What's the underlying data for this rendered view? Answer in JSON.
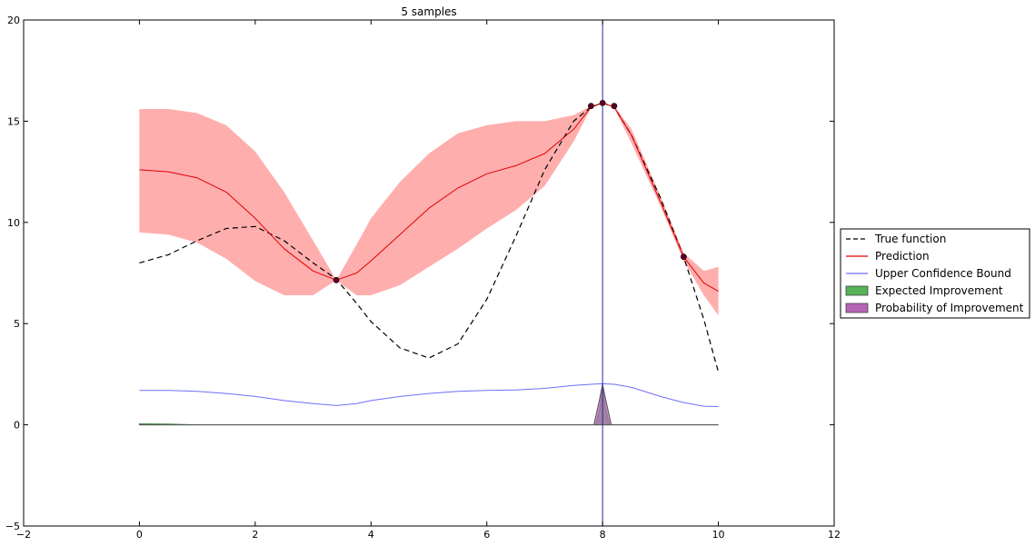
{
  "chart_data": {
    "type": "line",
    "title": "5 samples",
    "xlabel": "",
    "ylabel": "",
    "xlim": [
      -2,
      12
    ],
    "ylim": [
      -5,
      20
    ],
    "xticks": [
      -2,
      0,
      2,
      4,
      6,
      8,
      10,
      12
    ],
    "yticks": [
      -5,
      0,
      5,
      10,
      15,
      20
    ],
    "grid": false,
    "legend_position": "center-right outside",
    "x": [
      0,
      0.5,
      1,
      1.5,
      2,
      2.5,
      3,
      3.4,
      3.75,
      4,
      4.5,
      5,
      5.5,
      6,
      6.5,
      7,
      7.5,
      7.8,
      8,
      8.2,
      8.5,
      9,
      9.4,
      9.75,
      10
    ],
    "series": [
      {
        "name": "True function",
        "style": "dashed",
        "color": "#000000",
        "values": [
          8.0,
          8.4,
          9.1,
          9.7,
          9.8,
          9.1,
          8.0,
          7.2,
          6.0,
          5.1,
          3.8,
          3.3,
          4.0,
          6.2,
          9.3,
          12.6,
          15.0,
          15.7,
          15.9,
          15.7,
          14.3,
          11.2,
          8.3,
          5.2,
          2.6
        ]
      },
      {
        "name": "Prediction",
        "style": "solid",
        "color": "#e00000",
        "values": [
          12.6,
          12.5,
          12.2,
          11.5,
          10.2,
          8.7,
          7.6,
          7.15,
          7.5,
          8.1,
          9.4,
          10.7,
          11.7,
          12.4,
          12.8,
          13.4,
          14.6,
          15.7,
          15.9,
          15.7,
          14.3,
          11.0,
          8.3,
          7.0,
          6.6
        ]
      },
      {
        "name": "Upper Confidence Bound",
        "style": "solid",
        "color": "#6f6ff5",
        "values": [
          1.7,
          1.7,
          1.65,
          1.55,
          1.4,
          1.2,
          1.05,
          0.95,
          1.05,
          1.2,
          1.4,
          1.55,
          1.65,
          1.7,
          1.72,
          1.8,
          1.95,
          2.0,
          2.03,
          2.0,
          1.85,
          1.4,
          1.1,
          0.92,
          0.9
        ]
      }
    ],
    "confidence_band": {
      "color": "#ff9a9a",
      "upper": [
        15.6,
        15.6,
        15.4,
        14.8,
        13.5,
        11.5,
        9.1,
        7.15,
        8.9,
        10.2,
        12.0,
        13.4,
        14.4,
        14.8,
        15.0,
        15.0,
        15.3,
        15.75,
        15.9,
        15.75,
        14.6,
        11.3,
        8.5,
        7.6,
        7.8
      ],
      "lower": [
        9.5,
        9.4,
        9.0,
        8.2,
        7.1,
        6.4,
        6.4,
        7.15,
        6.4,
        6.4,
        6.9,
        7.8,
        8.7,
        9.7,
        10.6,
        11.8,
        14.0,
        15.65,
        15.9,
        15.65,
        13.9,
        10.8,
        8.1,
        6.4,
        5.4
      ]
    },
    "expected_improvement": {
      "name": "Expected Improvement",
      "color": "#56b356",
      "x": [
        0,
        0.5,
        1,
        2,
        4,
        6,
        7.88,
        7.95,
        8,
        8.05,
        8.12,
        9,
        10
      ],
      "values": [
        0.05,
        0.04,
        0.0,
        0.0,
        0.0,
        0.0,
        0.0,
        0.8,
        1.9,
        0.8,
        0.0,
        0.0,
        0.0
      ]
    },
    "probability_of_improvement": {
      "name": "Probability of Improvement",
      "color": "#b565b5",
      "x": [
        0,
        7.85,
        7.95,
        8,
        8.05,
        8.15,
        10
      ],
      "values": [
        0.0,
        0.0,
        1.3,
        2.0,
        1.3,
        0.0,
        0.0
      ]
    },
    "samples": {
      "x": [
        3.4,
        7.8,
        8.0,
        8.2,
        9.4
      ],
      "y": [
        7.15,
        15.75,
        15.9,
        15.75,
        8.3
      ]
    },
    "vertical_line": {
      "x": 8,
      "color": "#2a2a9a"
    }
  }
}
